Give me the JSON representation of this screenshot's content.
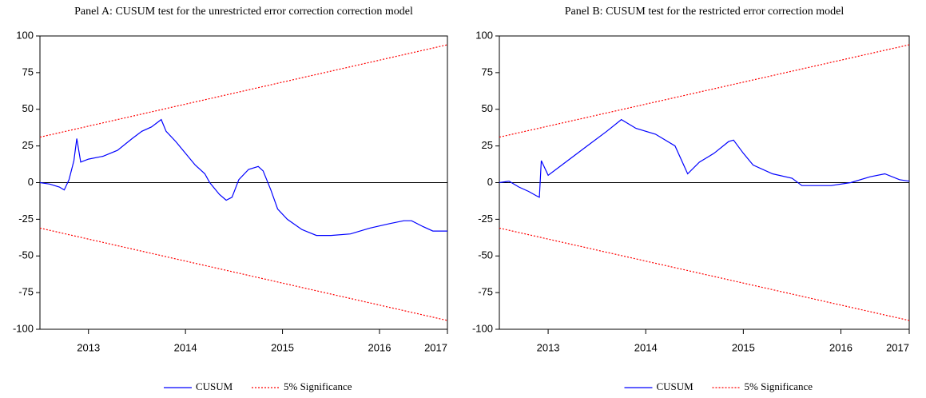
{
  "chart_data": [
    {
      "type": "line",
      "title": "Panel A: CUSUM test for the unrestricted error correction correction model",
      "xlim": [
        2012.5,
        2016.7
      ],
      "xticks": [
        2013,
        2014,
        2015,
        2016,
        {
          "value": 2016.7,
          "label": "2017"
        }
      ],
      "ylim": [
        -100,
        100
      ],
      "yticks": [
        100,
        75,
        50,
        25,
        0,
        -25,
        -50,
        -75,
        -100
      ],
      "hline": 0,
      "series": [
        {
          "name": "CUSUM",
          "color": "#0000ff",
          "x": [
            2012.5,
            2012.6,
            2012.7,
            2012.75,
            2012.8,
            2012.85,
            2012.88,
            2012.92,
            2013.0,
            2013.15,
            2013.3,
            2013.45,
            2013.55,
            2013.65,
            2013.75,
            2013.8,
            2013.9,
            2014.0,
            2014.1,
            2014.2,
            2014.25,
            2014.35,
            2014.42,
            2014.48,
            2014.55,
            2014.65,
            2014.75,
            2014.8,
            2014.88,
            2014.95,
            2015.05,
            2015.2,
            2015.35,
            2015.5,
            2015.7,
            2015.9,
            2016.1,
            2016.25,
            2016.33,
            2016.45,
            2016.55,
            2016.7
          ],
          "values": [
            0,
            -1,
            -3,
            -5,
            2,
            15,
            30,
            14,
            16,
            18,
            22,
            30,
            35,
            38,
            43,
            35,
            28,
            20,
            12,
            6,
            0,
            -8,
            -12,
            -10,
            2,
            9,
            11,
            8,
            -5,
            -18,
            -25,
            -32,
            -36,
            -36,
            -35,
            -31,
            -28,
            -26,
            -26,
            -30,
            -33,
            -33
          ]
        },
        {
          "name": "5% Significance",
          "color": "#ff0000",
          "x": [
            2012.5,
            2016.7
          ],
          "values": [
            31,
            94
          ],
          "lower": [
            -31,
            -94
          ]
        }
      ]
    },
    {
      "type": "line",
      "title": "Panel B: CUSUM test for the restricted error correction model",
      "xlim": [
        2012.5,
        2016.7
      ],
      "xticks": [
        2013,
        2014,
        2015,
        2016,
        {
          "value": 2016.7,
          "label": "2017"
        }
      ],
      "ylim": [
        -100,
        100
      ],
      "yticks": [
        100,
        75,
        50,
        25,
        0,
        -25,
        -50,
        -75,
        -100
      ],
      "hline": 0,
      "series": [
        {
          "name": "CUSUM",
          "color": "#0000ff",
          "x": [
            2012.5,
            2012.6,
            2012.7,
            2012.8,
            2012.88,
            2012.91,
            2012.93,
            2013.0,
            2013.2,
            2013.4,
            2013.6,
            2013.75,
            2013.9,
            2014.1,
            2014.3,
            2014.43,
            2014.55,
            2014.7,
            2014.85,
            2014.9,
            2015.0,
            2015.1,
            2015.3,
            2015.5,
            2015.6,
            2015.9,
            2016.1,
            2016.3,
            2016.45,
            2016.6,
            2016.7
          ],
          "values": [
            0,
            1,
            -3,
            -6,
            -9,
            -10,
            15,
            5,
            15,
            25,
            35,
            43,
            37,
            33,
            25,
            6,
            14,
            20,
            28,
            29,
            20,
            12,
            6,
            3,
            -2,
            -2,
            0,
            4,
            6,
            2,
            1
          ]
        },
        {
          "name": "5% Significance",
          "color": "#ff0000",
          "x": [
            2012.5,
            2016.7
          ],
          "values": [
            31,
            94
          ],
          "lower": [
            -31,
            -94
          ]
        }
      ]
    }
  ]
}
